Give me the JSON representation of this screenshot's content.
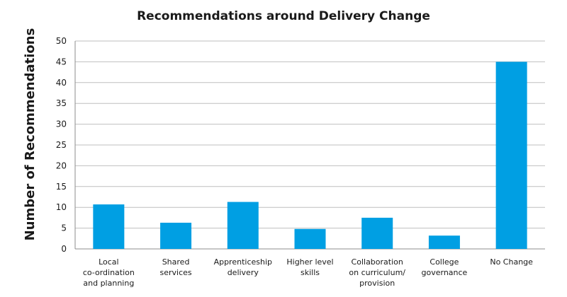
{
  "chart_data": {
    "type": "bar",
    "title": "Recommendations around Delivery Change",
    "xlabel": "",
    "ylabel": "Number of Recommendations",
    "ylim": [
      0,
      50
    ],
    "yticks": [
      0,
      5,
      10,
      15,
      20,
      25,
      30,
      35,
      40,
      45,
      50
    ],
    "grid": true,
    "categories": [
      [
        "Local",
        "co-ordination",
        "and planning"
      ],
      [
        "Shared",
        "services"
      ],
      [
        "Apprenticeship",
        "delivery"
      ],
      [
        "Higher level",
        "skills"
      ],
      [
        "Collaboration",
        "on curriculum/",
        "provision"
      ],
      [
        "College",
        "governance"
      ],
      [
        "No Change"
      ]
    ],
    "values": [
      10.7,
      6.3,
      11.3,
      4.8,
      7.5,
      3.2,
      45
    ],
    "bar_color": "#009fe3"
  }
}
